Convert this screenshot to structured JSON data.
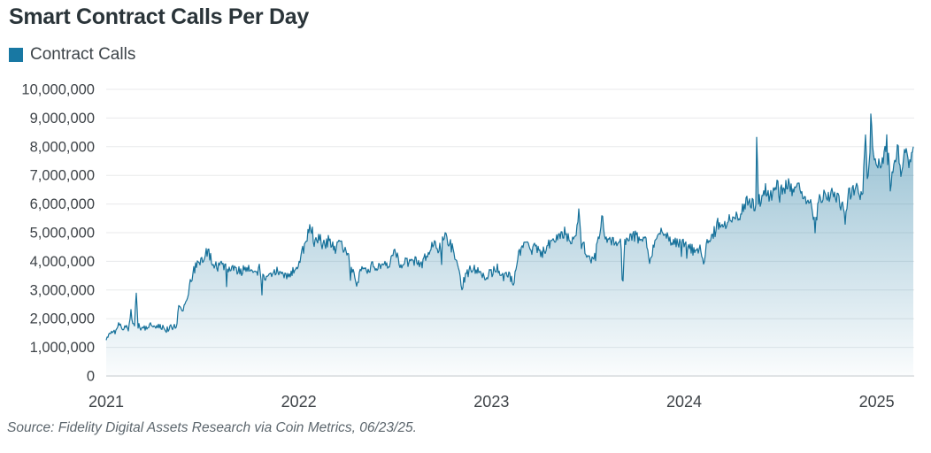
{
  "title": "Smart Contract Calls Per Day",
  "legend": {
    "label": "Contract Calls"
  },
  "source": "Source: Fidelity Digital Assets Research via Coin Metrics, 06/23/25.",
  "colors": {
    "accent": "#1878a3",
    "line": "#16719a",
    "area_top": "rgba(23,115,156,0.52)",
    "area_bottom": "rgba(23,115,156,0.02)",
    "grid": "#e8eaeb",
    "axis": "#c6cbce",
    "tick_text": "#3e4348",
    "title_text": "#2a3439",
    "source_text": "#5c666d"
  },
  "chart_data": {
    "type": "area",
    "title": "Smart Contract Calls Per Day",
    "series_name": "Contract Calls",
    "xlabel": "",
    "ylabel": "",
    "x_ticks": [
      2021,
      2022,
      2023,
      2024,
      2025
    ],
    "y_ticks": [
      0,
      1000000,
      2000000,
      3000000,
      4000000,
      5000000,
      6000000,
      7000000,
      8000000,
      9000000,
      10000000
    ],
    "xlim": [
      2021.0,
      2025.19
    ],
    "ylim": [
      0,
      10000000
    ],
    "grid": "horizontal",
    "legend_position": "top-left",
    "values_unit": "millions of calls per day",
    "noise_amplitude_note": "daily data; jitter grows from ~±0.12M (2021) to ~±0.3M (2025)",
    "anchors": [
      [
        2021.0,
        1.25
      ],
      [
        2021.01,
        1.45
      ],
      [
        2021.03,
        1.6
      ],
      [
        2021.05,
        1.5
      ],
      [
        2021.07,
        1.9
      ],
      [
        2021.085,
        1.55
      ],
      [
        2021.1,
        1.75
      ],
      [
        2021.115,
        1.6
      ],
      [
        2021.13,
        2.1
      ],
      [
        2021.148,
        1.7
      ],
      [
        2021.155,
        3.05
      ],
      [
        2021.165,
        1.75
      ],
      [
        2021.19,
        1.65
      ],
      [
        2021.22,
        1.78
      ],
      [
        2021.25,
        1.7
      ],
      [
        2021.28,
        1.75
      ],
      [
        2021.31,
        1.62
      ],
      [
        2021.34,
        1.7
      ],
      [
        2021.365,
        1.72
      ],
      [
        2021.375,
        2.45
      ],
      [
        2021.4,
        2.35
      ],
      [
        2021.425,
        2.9
      ],
      [
        2021.45,
        3.6
      ],
      [
        2021.475,
        3.95
      ],
      [
        2021.5,
        4.1
      ],
      [
        2021.525,
        4.35
      ],
      [
        2021.55,
        4.05
      ],
      [
        2021.575,
        3.8
      ],
      [
        2021.6,
        3.95
      ],
      [
        2021.625,
        3.7
      ],
      [
        2021.65,
        3.85
      ],
      [
        2021.675,
        3.72
      ],
      [
        2021.7,
        3.6
      ],
      [
        2021.725,
        3.75
      ],
      [
        2021.75,
        3.68
      ],
      [
        2021.775,
        3.72
      ],
      [
        2021.8,
        3.55
      ],
      [
        2021.83,
        3.35
      ],
      [
        2021.86,
        3.62
      ],
      [
        2021.89,
        3.68
      ],
      [
        2021.92,
        3.52
      ],
      [
        2021.95,
        3.58
      ],
      [
        2021.975,
        3.65
      ],
      [
        2022.0,
        3.95
      ],
      [
        2022.03,
        4.55
      ],
      [
        2022.06,
        5.25
      ],
      [
        2022.075,
        4.6
      ],
      [
        2022.1,
        4.85
      ],
      [
        2022.13,
        4.55
      ],
      [
        2022.16,
        4.75
      ],
      [
        2022.19,
        4.45
      ],
      [
        2022.22,
        4.6
      ],
      [
        2022.25,
        4.35
      ],
      [
        2022.28,
        3.6
      ],
      [
        2022.3,
        3.15
      ],
      [
        2022.32,
        3.7
      ],
      [
        2022.35,
        3.6
      ],
      [
        2022.38,
        3.85
      ],
      [
        2022.41,
        3.75
      ],
      [
        2022.44,
        3.9
      ],
      [
        2022.47,
        3.78
      ],
      [
        2022.5,
        4.55
      ],
      [
        2022.52,
        3.9
      ],
      [
        2022.55,
        3.98
      ],
      [
        2022.58,
        3.88
      ],
      [
        2022.61,
        4.05
      ],
      [
        2022.64,
        3.92
      ],
      [
        2022.67,
        4.3
      ],
      [
        2022.7,
        4.55
      ],
      [
        2022.73,
        4.45
      ],
      [
        2022.76,
        4.85
      ],
      [
        2022.79,
        4.55
      ],
      [
        2022.82,
        4.1
      ],
      [
        2022.845,
        3.1
      ],
      [
        2022.87,
        3.55
      ],
      [
        2022.9,
        3.8
      ],
      [
        2022.93,
        3.62
      ],
      [
        2022.96,
        3.5
      ],
      [
        2023.0,
        3.6
      ],
      [
        2023.03,
        3.75
      ],
      [
        2023.06,
        3.45
      ],
      [
        2023.09,
        3.55
      ],
      [
        2023.115,
        3.2
      ],
      [
        2023.14,
        4.15
      ],
      [
        2023.17,
        4.8
      ],
      [
        2023.2,
        4.3
      ],
      [
        2023.23,
        4.5
      ],
      [
        2023.26,
        4.25
      ],
      [
        2023.29,
        4.55
      ],
      [
        2023.32,
        4.72
      ],
      [
        2023.35,
        4.9
      ],
      [
        2023.38,
        5.0
      ],
      [
        2023.41,
        4.78
      ],
      [
        2023.44,
        4.7
      ],
      [
        2023.452,
        5.75
      ],
      [
        2023.465,
        4.65
      ],
      [
        2023.49,
        4.4
      ],
      [
        2023.52,
        3.95
      ],
      [
        2023.55,
        4.55
      ],
      [
        2023.572,
        5.6
      ],
      [
        2023.59,
        4.9
      ],
      [
        2023.62,
        4.72
      ],
      [
        2023.65,
        4.6
      ],
      [
        2023.672,
        4.7
      ],
      [
        2023.68,
        2.95
      ],
      [
        2023.69,
        4.55
      ],
      [
        2023.72,
        4.82
      ],
      [
        2023.75,
        4.9
      ],
      [
        2023.78,
        4.72
      ],
      [
        2023.805,
        4.65
      ],
      [
        2023.825,
        3.95
      ],
      [
        2023.85,
        4.78
      ],
      [
        2023.88,
        5.0
      ],
      [
        2023.91,
        4.85
      ],
      [
        2023.94,
        4.72
      ],
      [
        2023.97,
        4.65
      ],
      [
        2024.0,
        4.62
      ],
      [
        2024.03,
        4.5
      ],
      [
        2024.06,
        4.25
      ],
      [
        2024.085,
        4.55
      ],
      [
        2024.1,
        3.85
      ],
      [
        2024.12,
        4.6
      ],
      [
        2024.15,
        4.9
      ],
      [
        2024.175,
        5.3
      ],
      [
        2024.2,
        5.1
      ],
      [
        2024.23,
        5.45
      ],
      [
        2024.26,
        5.6
      ],
      [
        2024.285,
        5.45
      ],
      [
        2024.31,
        5.95
      ],
      [
        2024.335,
        6.1
      ],
      [
        2024.365,
        5.95
      ],
      [
        2024.372,
        6.0
      ],
      [
        2024.378,
        9.2
      ],
      [
        2024.384,
        6.05
      ],
      [
        2024.395,
        6.1
      ],
      [
        2024.42,
        6.5
      ],
      [
        2024.45,
        6.3
      ],
      [
        2024.48,
        6.6
      ],
      [
        2024.51,
        6.4
      ],
      [
        2024.54,
        6.7
      ],
      [
        2024.565,
        6.35
      ],
      [
        2024.59,
        6.55
      ],
      [
        2024.615,
        6.35
      ],
      [
        2024.64,
        6.2
      ],
      [
        2024.66,
        5.9
      ],
      [
        2024.68,
        5.2
      ],
      [
        2024.7,
        6.1
      ],
      [
        2024.725,
        6.35
      ],
      [
        2024.75,
        6.2
      ],
      [
        2024.775,
        6.45
      ],
      [
        2024.8,
        6.15
      ],
      [
        2024.82,
        5.95
      ],
      [
        2024.835,
        5.4
      ],
      [
        2024.85,
        6.3
      ],
      [
        2024.875,
        6.45
      ],
      [
        2024.9,
        6.6
      ],
      [
        2024.915,
        6.4
      ],
      [
        2024.93,
        6.6
      ],
      [
        2024.94,
        8.5
      ],
      [
        2024.95,
        7.0
      ],
      [
        2024.963,
        7.3
      ],
      [
        2024.97,
        8.95
      ],
      [
        2024.98,
        7.7
      ],
      [
        2025.0,
        7.5
      ],
      [
        2025.02,
        7.2
      ],
      [
        2025.04,
        7.9
      ],
      [
        2025.055,
        8.2
      ],
      [
        2025.07,
        6.6
      ],
      [
        2025.09,
        7.6
      ],
      [
        2025.11,
        7.9
      ],
      [
        2025.13,
        7.3
      ],
      [
        2025.15,
        7.8
      ],
      [
        2025.17,
        7.45
      ],
      [
        2025.188,
        8.1
      ]
    ]
  }
}
